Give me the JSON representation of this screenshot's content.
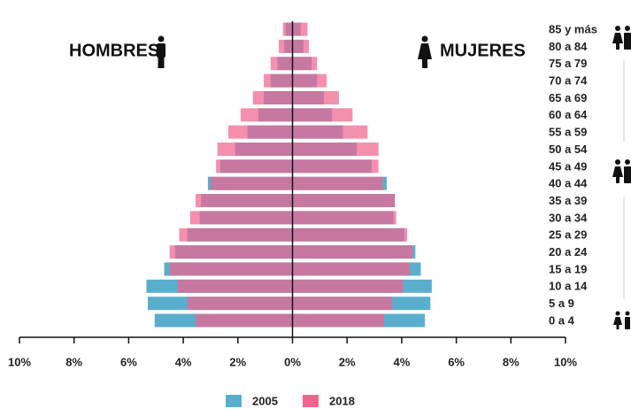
{
  "chart_data": {
    "type": "pyramid",
    "left_label": "HOMBRES",
    "right_label": "MUJERES",
    "categories": [
      "0 a 4",
      "5 a 9",
      "10 a 14",
      "15 a 19",
      "20 a 24",
      "25 a 29",
      "30 a 34",
      "35 a 39",
      "40 a 44",
      "45 a 49",
      "50 a 54",
      "55 a 59",
      "60 a 64",
      "65 a 69",
      "70 a 74",
      "75 a 79",
      "80 a 84",
      "85 y más"
    ],
    "series": [
      {
        "name": "2005",
        "color": "#5aaecd",
        "men": [
          5.05,
          5.3,
          5.35,
          4.7,
          4.3,
          3.85,
          3.4,
          3.35,
          3.1,
          2.65,
          2.1,
          1.65,
          1.25,
          1.05,
          0.8,
          0.55,
          0.3,
          0.25
        ],
        "women": [
          4.85,
          5.05,
          5.1,
          4.7,
          4.5,
          4.1,
          3.7,
          3.75,
          3.45,
          2.9,
          2.35,
          1.85,
          1.45,
          1.15,
          0.9,
          0.7,
          0.4,
          0.3
        ]
      },
      {
        "name": "2018",
        "color": "#f0648f",
        "men": [
          3.55,
          3.85,
          4.2,
          4.5,
          4.5,
          4.15,
          3.75,
          3.55,
          3.0,
          2.8,
          2.75,
          2.35,
          1.9,
          1.45,
          1.05,
          0.8,
          0.5,
          0.35
        ],
        "women": [
          3.35,
          3.65,
          4.05,
          4.3,
          4.4,
          4.2,
          3.8,
          3.75,
          3.3,
          3.15,
          3.15,
          2.75,
          2.2,
          1.7,
          1.25,
          0.9,
          0.6,
          0.55
        ]
      }
    ],
    "xlim": [
      -10,
      10
    ],
    "xticks": [
      {
        "value": -10,
        "label": "10%"
      },
      {
        "value": -8,
        "label": "8%"
      },
      {
        "value": -6,
        "label": "6%"
      },
      {
        "value": -4,
        "label": "4%"
      },
      {
        "value": -2,
        "label": "2%"
      },
      {
        "value": 0,
        "label": "0%"
      },
      {
        "value": 2,
        "label": "2%"
      },
      {
        "value": 4,
        "label": "4%"
      },
      {
        "value": 6,
        "label": "6%"
      },
      {
        "value": 8,
        "label": "8%"
      },
      {
        "value": 10,
        "label": "10%"
      }
    ]
  }
}
